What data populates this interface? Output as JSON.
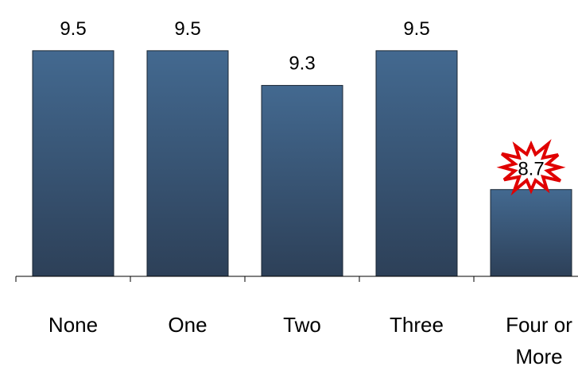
{
  "chart_data": {
    "type": "bar",
    "categories": [
      [
        "None"
      ],
      [
        "One"
      ],
      [
        "Two"
      ],
      [
        "Three"
      ],
      [
        "Four or",
        "More"
      ]
    ],
    "values": [
      9.5,
      9.5,
      9.3,
      9.5,
      8.7
    ],
    "value_labels": [
      "9.5",
      "9.5",
      "9.3",
      "9.5",
      "8.7"
    ],
    "highlighted": [
      "Four or More"
    ],
    "ylim": [
      8.2,
      9.6
    ],
    "grid": false,
    "legend": "none"
  },
  "colors": {
    "bar_top": "#436990",
    "bar_bottom": "#2d4058",
    "bar_stroke": "#1a2633",
    "axis": "#000000",
    "burst_fill": "#ffffff",
    "burst_stroke": "#e00000"
  },
  "highlight_icon": "starburst-icon"
}
